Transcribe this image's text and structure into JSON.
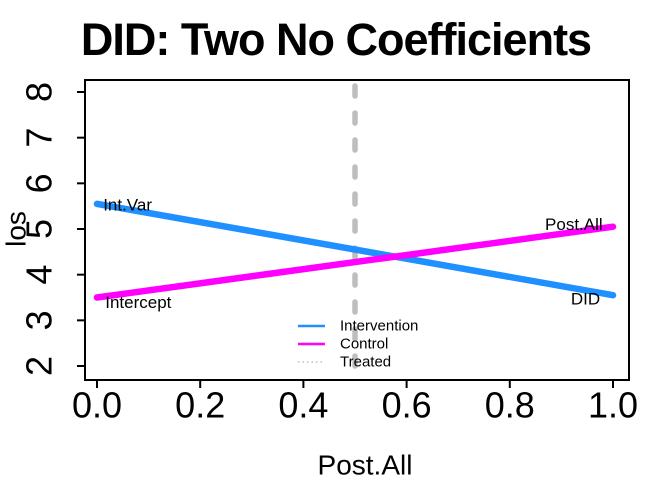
{
  "title": "DID: Two No Coefficients",
  "chart_data": {
    "type": "line",
    "title": "DID: Two No Coefficients",
    "xlabel": "Post.All",
    "ylabel": "los",
    "xlim": [
      0,
      1
    ],
    "ylim": [
      2,
      8
    ],
    "x_ticks": [
      "0.0",
      "0.2",
      "0.4",
      "0.6",
      "0.8",
      "1.0"
    ],
    "y_ticks": [
      "2",
      "3",
      "4",
      "5",
      "6",
      "7",
      "8"
    ],
    "grid": "off",
    "box": "on",
    "series": [
      {
        "name": "Intervention",
        "color": "#1E90FF",
        "style": "solid",
        "x": [
          0,
          1
        ],
        "y": [
          5.55,
          3.55
        ]
      },
      {
        "name": "Control",
        "color": "#FF00FF",
        "style": "solid",
        "x": [
          0,
          1
        ],
        "y": [
          3.5,
          5.05
        ]
      }
    ],
    "vline": {
      "name": "Treated",
      "x": 0.5,
      "color": "#BEBEBE",
      "style": "dashed"
    },
    "annotations": [
      {
        "text": "Int.Var",
        "x": 0.012,
        "y": 5.53,
        "anchor": "start"
      },
      {
        "text": "Intercept",
        "x": 0.016,
        "y": 3.39,
        "anchor": "start"
      },
      {
        "text": "Post.All",
        "x": 0.98,
        "y": 5.1,
        "anchor": "end"
      },
      {
        "text": "DID",
        "x": 0.975,
        "y": 3.47,
        "anchor": "end"
      }
    ],
    "legend": {
      "position": "bottom-center-inside",
      "entries": [
        {
          "label": "Intervention",
          "color": "#1E90FF",
          "style": "solid"
        },
        {
          "label": "Control",
          "color": "#FF00FF",
          "style": "solid"
        },
        {
          "label": "Treated",
          "color": "#BEBEBE",
          "style": "dotted"
        }
      ]
    },
    "colors": {
      "axis": "#000000",
      "background": "#FFFFFF",
      "intervention": "#1E90FF",
      "control": "#FF00FF",
      "treated": "#BEBEBE"
    }
  }
}
